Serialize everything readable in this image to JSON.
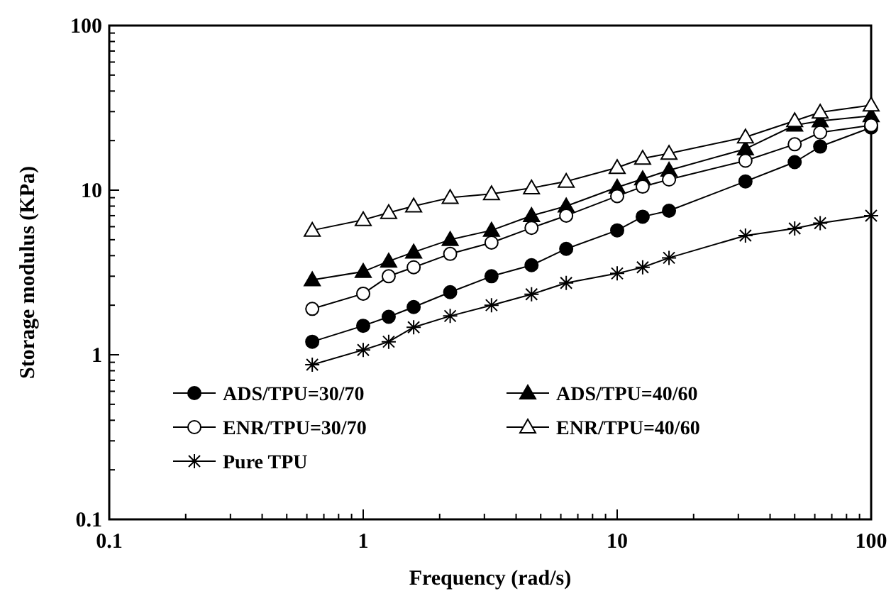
{
  "chart_data": {
    "type": "line",
    "xlabel": "Frequency (rad/s)",
    "ylabel": "Storage modulus (KPa)",
    "log": "xy",
    "xlim": [
      0.1,
      100
    ],
    "ylim": [
      0.1,
      100
    ],
    "xticks": [
      0.1,
      {
        "value": 0.2,
        "label": null
      },
      {
        "value": 0.3,
        "label": null
      },
      {
        "value": 0.4,
        "label": null
      },
      {
        "value": 0.5,
        "label": null
      },
      {
        "value": 0.6,
        "label": null
      },
      {
        "value": 0.7,
        "label": null
      },
      {
        "value": 0.8,
        "label": null
      },
      {
        "value": 0.9,
        "label": null
      },
      1,
      {
        "value": 2,
        "label": null
      },
      {
        "value": 3,
        "label": null
      },
      {
        "value": 4,
        "label": null
      },
      {
        "value": 5,
        "label": null
      },
      {
        "value": 6,
        "label": null
      },
      {
        "value": 7,
        "label": null
      },
      {
        "value": 8,
        "label": null
      },
      {
        "value": 9,
        "label": null
      },
      10,
      {
        "value": 20,
        "label": null
      },
      {
        "value": 30,
        "label": null
      },
      {
        "value": 40,
        "label": null
      },
      {
        "value": 50,
        "label": null
      },
      {
        "value": 60,
        "label": null
      },
      {
        "value": 70,
        "label": null
      },
      {
        "value": 80,
        "label": null
      },
      {
        "value": 90,
        "label": null
      },
      100
    ],
    "yticks": [
      0.1,
      {
        "value": 0.2,
        "label": null
      },
      {
        "value": 0.3,
        "label": null
      },
      {
        "value": 0.4,
        "label": null
      },
      {
        "value": 0.5,
        "label": null
      },
      {
        "value": 0.6,
        "label": null
      },
      {
        "value": 0.7,
        "label": null
      },
      {
        "value": 0.8,
        "label": null
      },
      {
        "value": 0.9,
        "label": null
      },
      1,
      {
        "value": 2,
        "label": null
      },
      {
        "value": 3,
        "label": null
      },
      {
        "value": 4,
        "label": null
      },
      {
        "value": 5,
        "label": null
      },
      {
        "value": 6,
        "label": null
      },
      {
        "value": 7,
        "label": null
      },
      {
        "value": 8,
        "label": null
      },
      {
        "value": 9,
        "label": null
      },
      10,
      {
        "value": 20,
        "label": null
      },
      {
        "value": 30,
        "label": null
      },
      {
        "value": 40,
        "label": null
      },
      {
        "value": 50,
        "label": null
      },
      {
        "value": 60,
        "label": null
      },
      {
        "value": 70,
        "label": null
      },
      {
        "value": 80,
        "label": null
      },
      {
        "value": 90,
        "label": null
      },
      100
    ],
    "x": [
      0.63,
      1,
      1.26,
      1.58,
      2.2,
      3.2,
      4.6,
      6.3,
      10,
      12.6,
      16,
      32,
      50,
      63,
      100
    ],
    "grid": false,
    "legend": "bottom",
    "line_style": "solid",
    "series": [
      {
        "name": "ADS/TPU=30/70",
        "color": "#000000",
        "marker": "circle",
        "values": [
          1.2,
          1.5,
          1.7,
          1.95,
          2.4,
          3.0,
          3.5,
          4.4,
          5.7,
          6.9,
          7.5,
          11.3,
          14.8,
          18.4,
          24
        ]
      },
      {
        "name": "ADS/TPU=40/60",
        "color": "#000000",
        "marker": "triangle",
        "values": [
          2.85,
          3.2,
          3.7,
          4.2,
          5.0,
          5.7,
          7.0,
          8.0,
          10.4,
          11.7,
          13.2,
          17.8,
          24.8,
          26.3,
          28.3
        ]
      },
      {
        "name": "ENR/TPU=30/70",
        "color": "#000000",
        "marker": "circle",
        "values": [
          1.9,
          2.35,
          3.0,
          3.4,
          4.1,
          4.8,
          5.9,
          7.0,
          9.2,
          10.5,
          11.6,
          15.1,
          19,
          22.4,
          24.8
        ]
      },
      {
        "name": "ENR/TPU=40/60",
        "color": "#000000",
        "marker": "triangle",
        "values": [
          5.7,
          6.6,
          7.3,
          8.0,
          9.0,
          9.5,
          10.3,
          11.3,
          13.7,
          15.6,
          16.7,
          21,
          26.4,
          29.7,
          32.8
        ]
      },
      {
        "name": "Pure TPU",
        "color": "#000000",
        "marker": "cross",
        "values": [
          0.87,
          1.07,
          1.2,
          1.47,
          1.72,
          2.0,
          2.33,
          2.73,
          3.12,
          3.4,
          3.88,
          5.3,
          5.85,
          6.3,
          7.0
        ]
      }
    ]
  }
}
